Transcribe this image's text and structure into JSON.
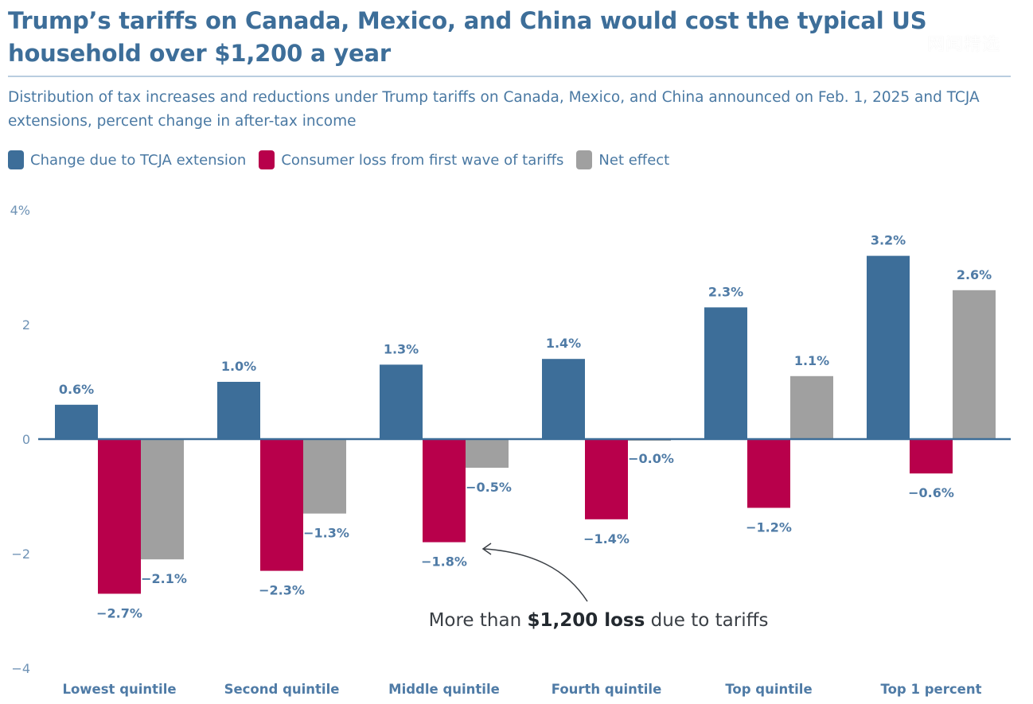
{
  "header": {
    "title": "Trump’s tariffs on Canada, Mexico, and China would cost the typical US household over $1,200 a year",
    "subtitle": "Distribution of tax increases and reductions under Trump tariffs on Canada, Mexico, and China announced on Feb. 1, 2025 and TCJA extensions, percent change in after-tax income",
    "watermark": "网闻精选"
  },
  "legend": [
    {
      "label": "Change due to TCJA extension",
      "color": "#3d6e99"
    },
    {
      "label": "Consumer loss from first wave of tariffs",
      "color": "#b8004b"
    },
    {
      "label": "Net effect",
      "color": "#a0a0a0"
    }
  ],
  "chart_data": {
    "type": "bar",
    "title": "Trump’s tariffs on Canada, Mexico, and China would cost the typical US household over $1,200 a year",
    "xlabel": "",
    "ylabel": "percent change in after-tax income",
    "ylim": [
      -4,
      4
    ],
    "yticks": [
      {
        "value": 4,
        "label": "4%"
      },
      {
        "value": 2,
        "label": "2"
      },
      {
        "value": 0,
        "label": "0"
      },
      {
        "value": -2,
        "label": "−2"
      },
      {
        "value": -4,
        "label": "−4"
      }
    ],
    "grid": false,
    "legend_position": "top-left",
    "categories": [
      "Lowest quintile",
      "Second quintile",
      "Middle quintile",
      "Fourth quintile",
      "Top quintile",
      "Top 1 percent"
    ],
    "series": [
      {
        "name": "Change due to TCJA extension",
        "color": "#3d6e99",
        "values": [
          0.6,
          1.0,
          1.3,
          1.4,
          2.3,
          3.2
        ],
        "labels": [
          "0.6%",
          "1.0%",
          "1.3%",
          "1.4%",
          "2.3%",
          "3.2%"
        ]
      },
      {
        "name": "Consumer loss from first wave of tariffs",
        "color": "#b8004b",
        "values": [
          -2.7,
          -2.3,
          -1.8,
          -1.4,
          -1.2,
          -0.6
        ],
        "labels": [
          "−2.7%",
          "−2.3%",
          "−1.8%",
          "−1.4%",
          "−1.2%",
          "−0.6%"
        ]
      },
      {
        "name": "Net effect",
        "color": "#a0a0a0",
        "values": [
          -2.1,
          -1.3,
          -0.5,
          -0.0,
          1.1,
          2.6
        ],
        "labels": [
          "−2.1%",
          "−1.3%",
          "−0.5%",
          "−0.0%",
          "1.1%",
          "2.6%"
        ]
      }
    ],
    "annotation": {
      "prefix": "More than ",
      "bold": "$1,200 loss",
      "suffix": " due to tariffs",
      "points_to": "Middle quintile consumer loss (−1.8%)"
    }
  }
}
